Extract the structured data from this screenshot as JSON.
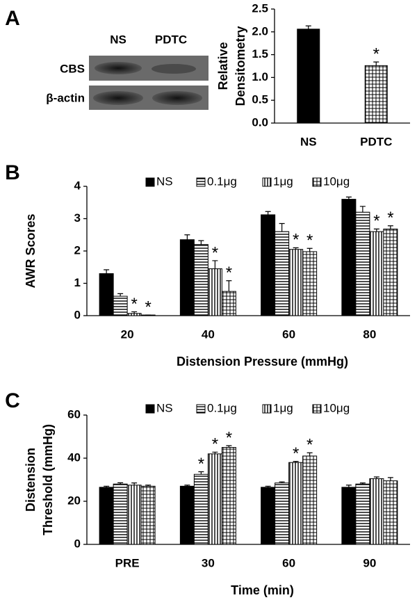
{
  "chart_data": [
    {
      "type": "bar",
      "panel_label": "A",
      "blot": {
        "lanes": [
          "NS",
          "PDTC"
        ],
        "rows": [
          "CBS",
          "β-actin"
        ]
      },
      "ylabel": [
        "Relative",
        "Densitometry"
      ],
      "categories": [
        "NS",
        "PDTC"
      ],
      "values": [
        2.06,
        1.26
      ],
      "errors": [
        0.07,
        0.08
      ],
      "annotations": [
        null,
        "*"
      ],
      "patterns": [
        "solid",
        "grid"
      ],
      "color": "#000000",
      "ylim": [
        0,
        2.5
      ],
      "yticks": [
        {
          "value": 0,
          "label": "0.0"
        },
        0.5,
        {
          "value": 1,
          "label": "1.0"
        },
        1.5,
        {
          "value": 2,
          "label": "2.0"
        },
        2.5
      ],
      "grid": false
    },
    {
      "type": "grouped_bar",
      "panel_label": "B",
      "ylabel": [
        "AWR Scores"
      ],
      "xlabel": "Distension Pressure (mmHg)",
      "categories": [
        "20",
        "40",
        "60",
        "80"
      ],
      "series": [
        {
          "name": "NS",
          "color": "#000000",
          "pattern": "solid",
          "values": [
            1.3,
            2.35,
            3.12,
            3.6
          ],
          "errors": [
            0.12,
            0.15,
            0.1,
            0.07
          ],
          "annotations": [
            null,
            null,
            null,
            null
          ]
        },
        {
          "name": "0.1μg",
          "color": "#000000",
          "pattern": "horizontal",
          "values": [
            0.6,
            2.2,
            2.6,
            3.2
          ],
          "errors": [
            0.08,
            0.12,
            0.25,
            0.18
          ],
          "annotations": [
            null,
            null,
            null,
            null
          ]
        },
        {
          "name": "1μg",
          "color": "#000000",
          "pattern": "vertical",
          "values": [
            0.07,
            1.45,
            2.05,
            2.6
          ],
          "errors": [
            0.05,
            0.25,
            0.05,
            0.08
          ],
          "annotations": [
            "*",
            "*",
            "*",
            "*"
          ]
        },
        {
          "name": "10μg",
          "color": "#000000",
          "pattern": "grid",
          "values": [
            0.02,
            0.75,
            1.98,
            2.68
          ],
          "errors": [
            0,
            0.33,
            0.1,
            0.1
          ],
          "annotations": [
            "*",
            "*",
            "*",
            "*"
          ]
        }
      ],
      "ylim": [
        0,
        4
      ],
      "yticks": [
        0,
        1,
        2,
        3,
        4
      ],
      "grid": false,
      "legend": "top"
    },
    {
      "type": "grouped_bar",
      "panel_label": "C",
      "ylabel": [
        "Distension",
        "Threshold (mmHg)"
      ],
      "xlabel": "Time (min)",
      "categories": [
        "PRE",
        "30",
        "60",
        "90"
      ],
      "series": [
        {
          "name": "NS",
          "color": "#000000",
          "pattern": "solid",
          "values": [
            26.5,
            27,
            26.5,
            26.5
          ],
          "errors": [
            0.5,
            0.5,
            0.5,
            1
          ],
          "annotations": [
            null,
            null,
            null,
            null
          ]
        },
        {
          "name": "0.1μg",
          "color": "#000000",
          "pattern": "horizontal",
          "values": [
            28,
            32.5,
            28.5,
            28
          ],
          "errors": [
            0.6,
            1.2,
            0.5,
            0.5
          ],
          "annotations": [
            null,
            "*",
            null,
            null
          ]
        },
        {
          "name": "1μg",
          "color": "#000000",
          "pattern": "vertical",
          "values": [
            27.5,
            42,
            38,
            30.5
          ],
          "errors": [
            1,
            0.8,
            0.5,
            0.8
          ],
          "annotations": [
            null,
            "*",
            "*",
            null
          ]
        },
        {
          "name": "10μg",
          "color": "#000000",
          "pattern": "grid",
          "values": [
            27,
            45,
            41,
            29.5
          ],
          "errors": [
            0.5,
            0.8,
            1.5,
            1.5
          ],
          "annotations": [
            null,
            "*",
            "*",
            null
          ]
        }
      ],
      "ylim": [
        0,
        60
      ],
      "yticks": [
        0,
        20,
        40,
        60
      ],
      "grid": false,
      "legend": "top"
    }
  ]
}
